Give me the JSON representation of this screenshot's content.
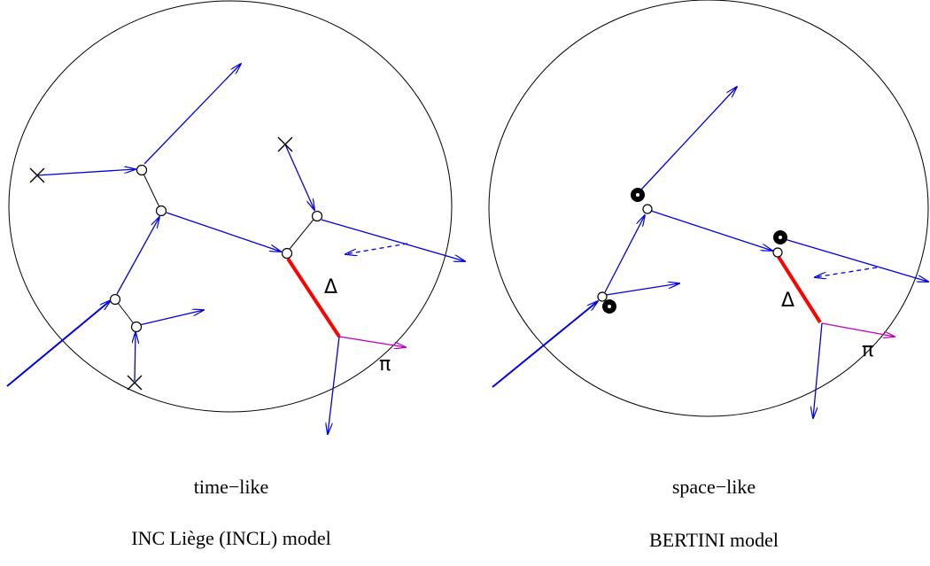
{
  "left": {
    "delta_label": "Δ",
    "pi_label": "π",
    "caption": "time−like",
    "model": "INC Liège (INCL) model"
  },
  "right": {
    "delta_label": "Δ",
    "pi_label": "π",
    "caption": "space−like",
    "model": "BERTINI model"
  }
}
